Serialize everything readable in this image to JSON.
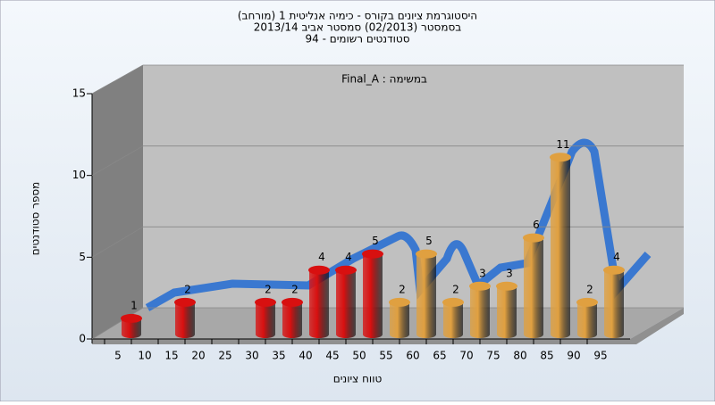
{
  "chart_data": {
    "type": "bar",
    "title": [
      "היסטוגרמת ציונים בקורס - כימיה אנליטית 1 (מורחב)",
      "בסמסטר (02/2013) סמסטר אביב 2013/14",
      "סטודנטים רשומים - 94"
    ],
    "annotation": "Final_A : במשימה",
    "xlabel": "טווח ציונים",
    "ylabel": "מספר סטודנטים",
    "categories": [
      "5",
      "10",
      "15",
      "20",
      "25",
      "30",
      "35",
      "40",
      "45",
      "50",
      "55",
      "60",
      "65",
      "70",
      "75",
      "80",
      "85",
      "90",
      "95"
    ],
    "values": [
      1,
      0,
      2,
      0,
      0,
      2,
      2,
      4,
      4,
      5,
      2,
      5,
      2,
      3,
      3,
      6,
      11,
      2,
      4
    ],
    "colors": [
      "#d81010",
      "#d81010",
      "#d81010",
      "#d81010",
      "#d81010",
      "#d81010",
      "#d81010",
      "#d81010",
      "#d81010",
      "#d81010",
      "#e0a040",
      "#e0a040",
      "#e0a040",
      "#e0a040",
      "#e0a040",
      "#e0a040",
      "#e0a040",
      "#e0a040",
      "#e0a040"
    ],
    "ylim": [
      0,
      15
    ],
    "yticks": [
      0,
      5,
      10,
      15
    ],
    "grid": true
  }
}
